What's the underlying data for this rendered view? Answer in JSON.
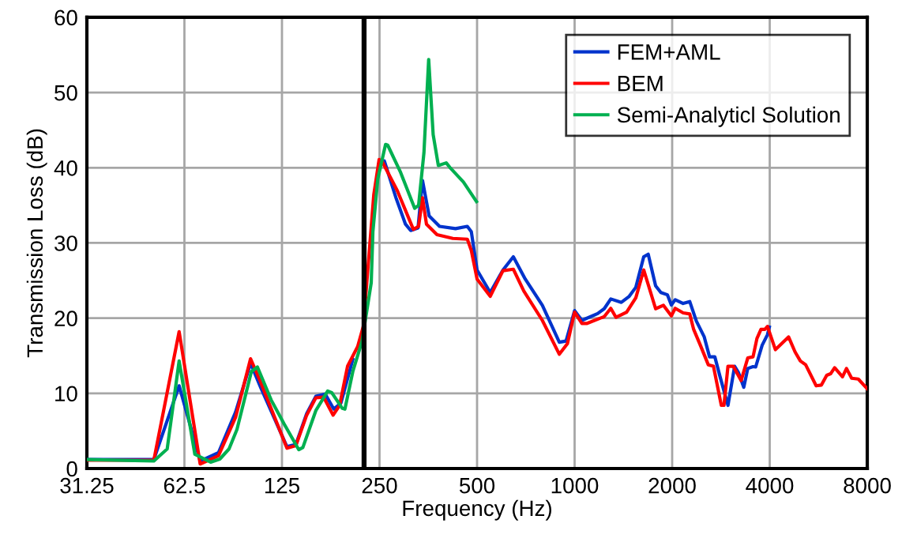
{
  "chart_data": {
    "type": "line",
    "xlabel": "Frequency (Hz)",
    "ylabel": "Transmission Loss (dB)",
    "log": "x",
    "xlim": [
      31.25,
      8000
    ],
    "xticks": [
      31.25,
      62.5,
      125,
      250,
      500,
      1000,
      2000,
      4000,
      8000
    ],
    "ylim": [
      0,
      60
    ],
    "yticks": [
      0,
      10,
      20,
      30,
      40,
      50,
      60
    ],
    "grid": true,
    "legend": "top right",
    "marker": "none",
    "line_style": "solid",
    "ref_lines": [
      {
        "axis": "x",
        "value": 224,
        "label": null,
        "color": "#000000"
      }
    ],
    "series": [
      {
        "name": "FEM+AML",
        "color": "#0033cc",
        "x": [
          31.25,
          50.3,
          60.2,
          69.9,
          79.6,
          89.9,
          100,
          107.4,
          129.5,
          138,
          149,
          159,
          170,
          180.6,
          190,
          206.8,
          220.7,
          237.8,
          249,
          258.7,
          281,
          300.6,
          312,
          328.7,
          339.3,
          355.6,
          383,
          429,
          466.6,
          480,
          500,
          549,
          601,
          647,
          704,
          795,
          897,
          941,
          1000,
          1053,
          1178,
          1234,
          1293,
          1394,
          1474,
          1545,
          1634,
          1687,
          1778,
          1846,
          1934,
          1988,
          2044,
          2162,
          2266,
          2375,
          2512,
          2608,
          2708,
          2811,
          2973,
          3117,
          3204,
          3327,
          3422,
          3553,
          3620,
          3791,
          3937,
          3990
        ],
        "values": [
          1.2,
          1.2,
          11.0,
          1.0,
          2.1,
          7.5,
          14.0,
          10.8,
          2.9,
          3.2,
          7.3,
          9.6,
          9.9,
          7.9,
          8.7,
          14.5,
          null,
          33.2,
          40.6,
          40.9,
          36.0,
          32.5,
          31.65,
          32.0,
          38.3,
          33.6,
          32.2,
          31.9,
          32.2,
          31.5,
          26.4,
          23.4,
          26.4,
          28.15,
          25.2,
          21.7,
          16.8,
          16.95,
          21.0,
          19.7,
          20.6,
          21.25,
          22.55,
          22.1,
          22.9,
          24.1,
          28.15,
          28.5,
          24.3,
          23.4,
          23.1,
          21.75,
          22.45,
          21.95,
          22.2,
          19.6,
          17.5,
          14.85,
          14.85,
          12.2,
          8.4,
          13.6,
          12.75,
          10.8,
          13.3,
          13.55,
          13.5,
          16.4,
          17.8,
          18.8
        ]
      },
      {
        "name": "BEM",
        "color": "#ff0000",
        "x": [
          31.25,
          50.3,
          60.2,
          69.9,
          79.6,
          89.9,
          100,
          107.4,
          129.5,
          138,
          149,
          159,
          168,
          179.8,
          188.3,
          199.2,
          214,
          222.8,
          240,
          249.3,
          255,
          284,
          318,
          330,
          339.3,
          349,
          376,
          420.7,
          466.6,
          480,
          500,
          549,
          601,
          647,
          697,
          795,
          897,
          950,
          1000,
          1053,
          1093,
          1234,
          1293,
          1342,
          1447,
          1545,
          1634,
          1778,
          1880,
          1988,
          2044,
          2162,
          2266,
          2330,
          2443,
          2585,
          2682,
          2836,
          2890,
          2973,
          3087,
          3265,
          3422,
          3553,
          3653,
          3759,
          3864,
          3937,
          4165,
          4573,
          4790,
          4973,
          5163,
          5563,
          5776,
          5997,
          6165,
          6344,
          6709,
          6902,
          7160,
          7506,
          8000
        ],
        "values": [
          1.1,
          1.1,
          18.2,
          0.6,
          1.7,
          6.8,
          14.6,
          11.5,
          2.7,
          3.05,
          7.1,
          9.4,
          9.5,
          7.1,
          8.4,
          13.6,
          16.2,
          18.9,
          36.4,
          41.1,
          40.8,
          36.9,
          31.8,
          32.2,
          36.0,
          32.5,
          31.1,
          30.6,
          30.5,
          29.0,
          25.2,
          22.9,
          26.3,
          26.5,
          23.6,
          19.7,
          15.2,
          16.6,
          20.8,
          19.3,
          19.3,
          20.2,
          21.3,
          20.1,
          20.8,
          22.7,
          26.4,
          21.25,
          21.7,
          20.3,
          21.3,
          20.7,
          20.55,
          18.5,
          16.4,
          13.8,
          13.6,
          8.4,
          8.4,
          13.6,
          13.6,
          11.7,
          14.7,
          14.85,
          17.3,
          18.5,
          18.5,
          18.9,
          15.8,
          17.5,
          15.5,
          14.3,
          13.8,
          11.0,
          11.1,
          12.4,
          12.6,
          13.4,
          12.2,
          13.3,
          12.0,
          11.9,
          10.6
        ]
      },
      {
        "name": "Semi-Analyticl Solution",
        "color": "#00b050",
        "x": [
          31.25,
          50.3,
          55.3,
          60.2,
          67.3,
          75.3,
          80.4,
          85.8,
          90.8,
          100.6,
          105,
          115.8,
          127,
          140.9,
          145,
          159,
          173,
          178,
          191.9,
          195.5,
          206.8,
          220.7,
          235.7,
          238.5,
          246.9,
          261,
          265,
          289.6,
          321,
          330,
          342.8,
          354.5,
          366,
          379.7,
          401.6,
          412,
          453.8,
          498
        ],
        "values": [
          1.2,
          1.0,
          2.6,
          14.3,
          1.9,
          0.84,
          1.26,
          2.6,
          5.2,
          12.9,
          13.5,
          9.1,
          5.9,
          2.5,
          2.8,
          7.7,
          10.3,
          10.1,
          8.0,
          7.9,
          12.9,
          16.9,
          24.7,
          31.5,
          38.5,
          43.1,
          43.0,
          39.5,
          34.6,
          35.0,
          42.0,
          54.4,
          44.4,
          40.3,
          40.65,
          40.05,
          38.1,
          35.5
        ]
      }
    ]
  }
}
